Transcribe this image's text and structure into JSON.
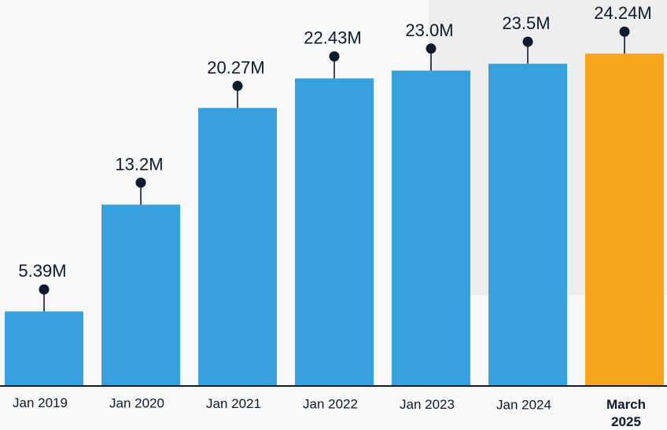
{
  "chart_data": {
    "type": "bar",
    "categories": [
      "Jan 2019",
      "Jan 2020",
      "Jan 2021",
      "Jan 2022",
      "Jan 2023",
      "Jan 2024",
      "March 2025"
    ],
    "values": [
      5.39,
      13.2,
      20.27,
      22.43,
      23.0,
      23.5,
      24.24
    ],
    "labels": [
      "5.39M",
      "13.2M",
      "20.27M",
      "22.43M",
      "23.0M",
      "23.5M",
      "24.24M"
    ],
    "highlight_index": 6,
    "colors": {
      "bar": "#36a1dc",
      "highlight": "#f8a51e",
      "marker": "#0d1b2e",
      "axis": "#0d1b2e"
    },
    "title": "",
    "xlabel": "",
    "ylabel": "",
    "grid": false,
    "legend": "none"
  }
}
